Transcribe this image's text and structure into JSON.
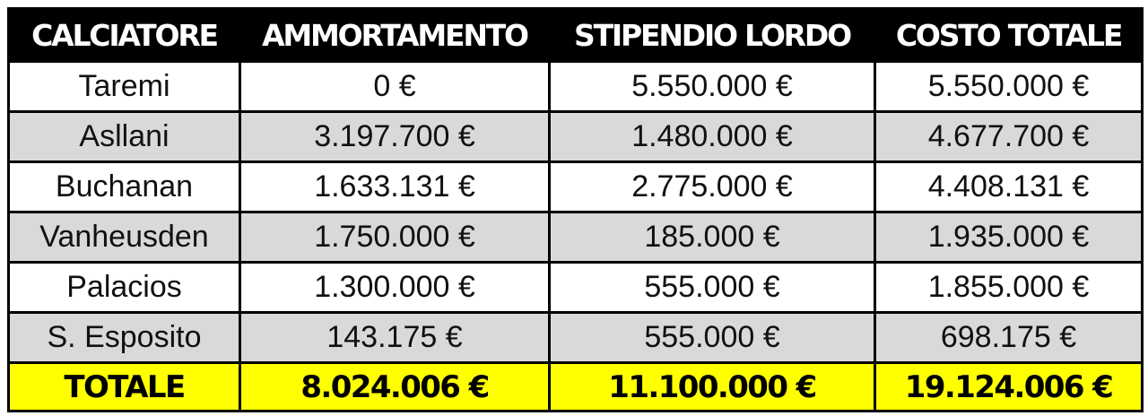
{
  "colors": {
    "header_bg": "#000000",
    "header_text": "#ffffff",
    "row_bg": "#ffffff",
    "row_alt_bg": "#d9d9d9",
    "total_bg": "#ffff00",
    "border": "#000000"
  },
  "table": {
    "headers": [
      "CALCIATORE",
      "AMMORTAMENTO",
      "STIPENDIO LORDO",
      "COSTO TOTALE"
    ],
    "rows": [
      [
        "Taremi",
        "0 €",
        "5.550.000 €",
        "5.550.000 €"
      ],
      [
        "Asllani",
        "3.197.700 €",
        "1.480.000 €",
        "4.677.700 €"
      ],
      [
        "Buchanan",
        "1.633.131 €",
        "2.775.000 €",
        "4.408.131 €"
      ],
      [
        "Vanheusden",
        "1.750.000 €",
        "185.000 €",
        "1.935.000 €"
      ],
      [
        "Palacios",
        "1.300.000 €",
        "555.000 €",
        "1.855.000 €"
      ],
      [
        "S. Esposito",
        "143.175 €",
        "555.000 €",
        "698.175 €"
      ]
    ],
    "total": [
      "TOTALE",
      "8.024.006 €",
      "11.100.000 €",
      "19.124.006 €"
    ]
  }
}
